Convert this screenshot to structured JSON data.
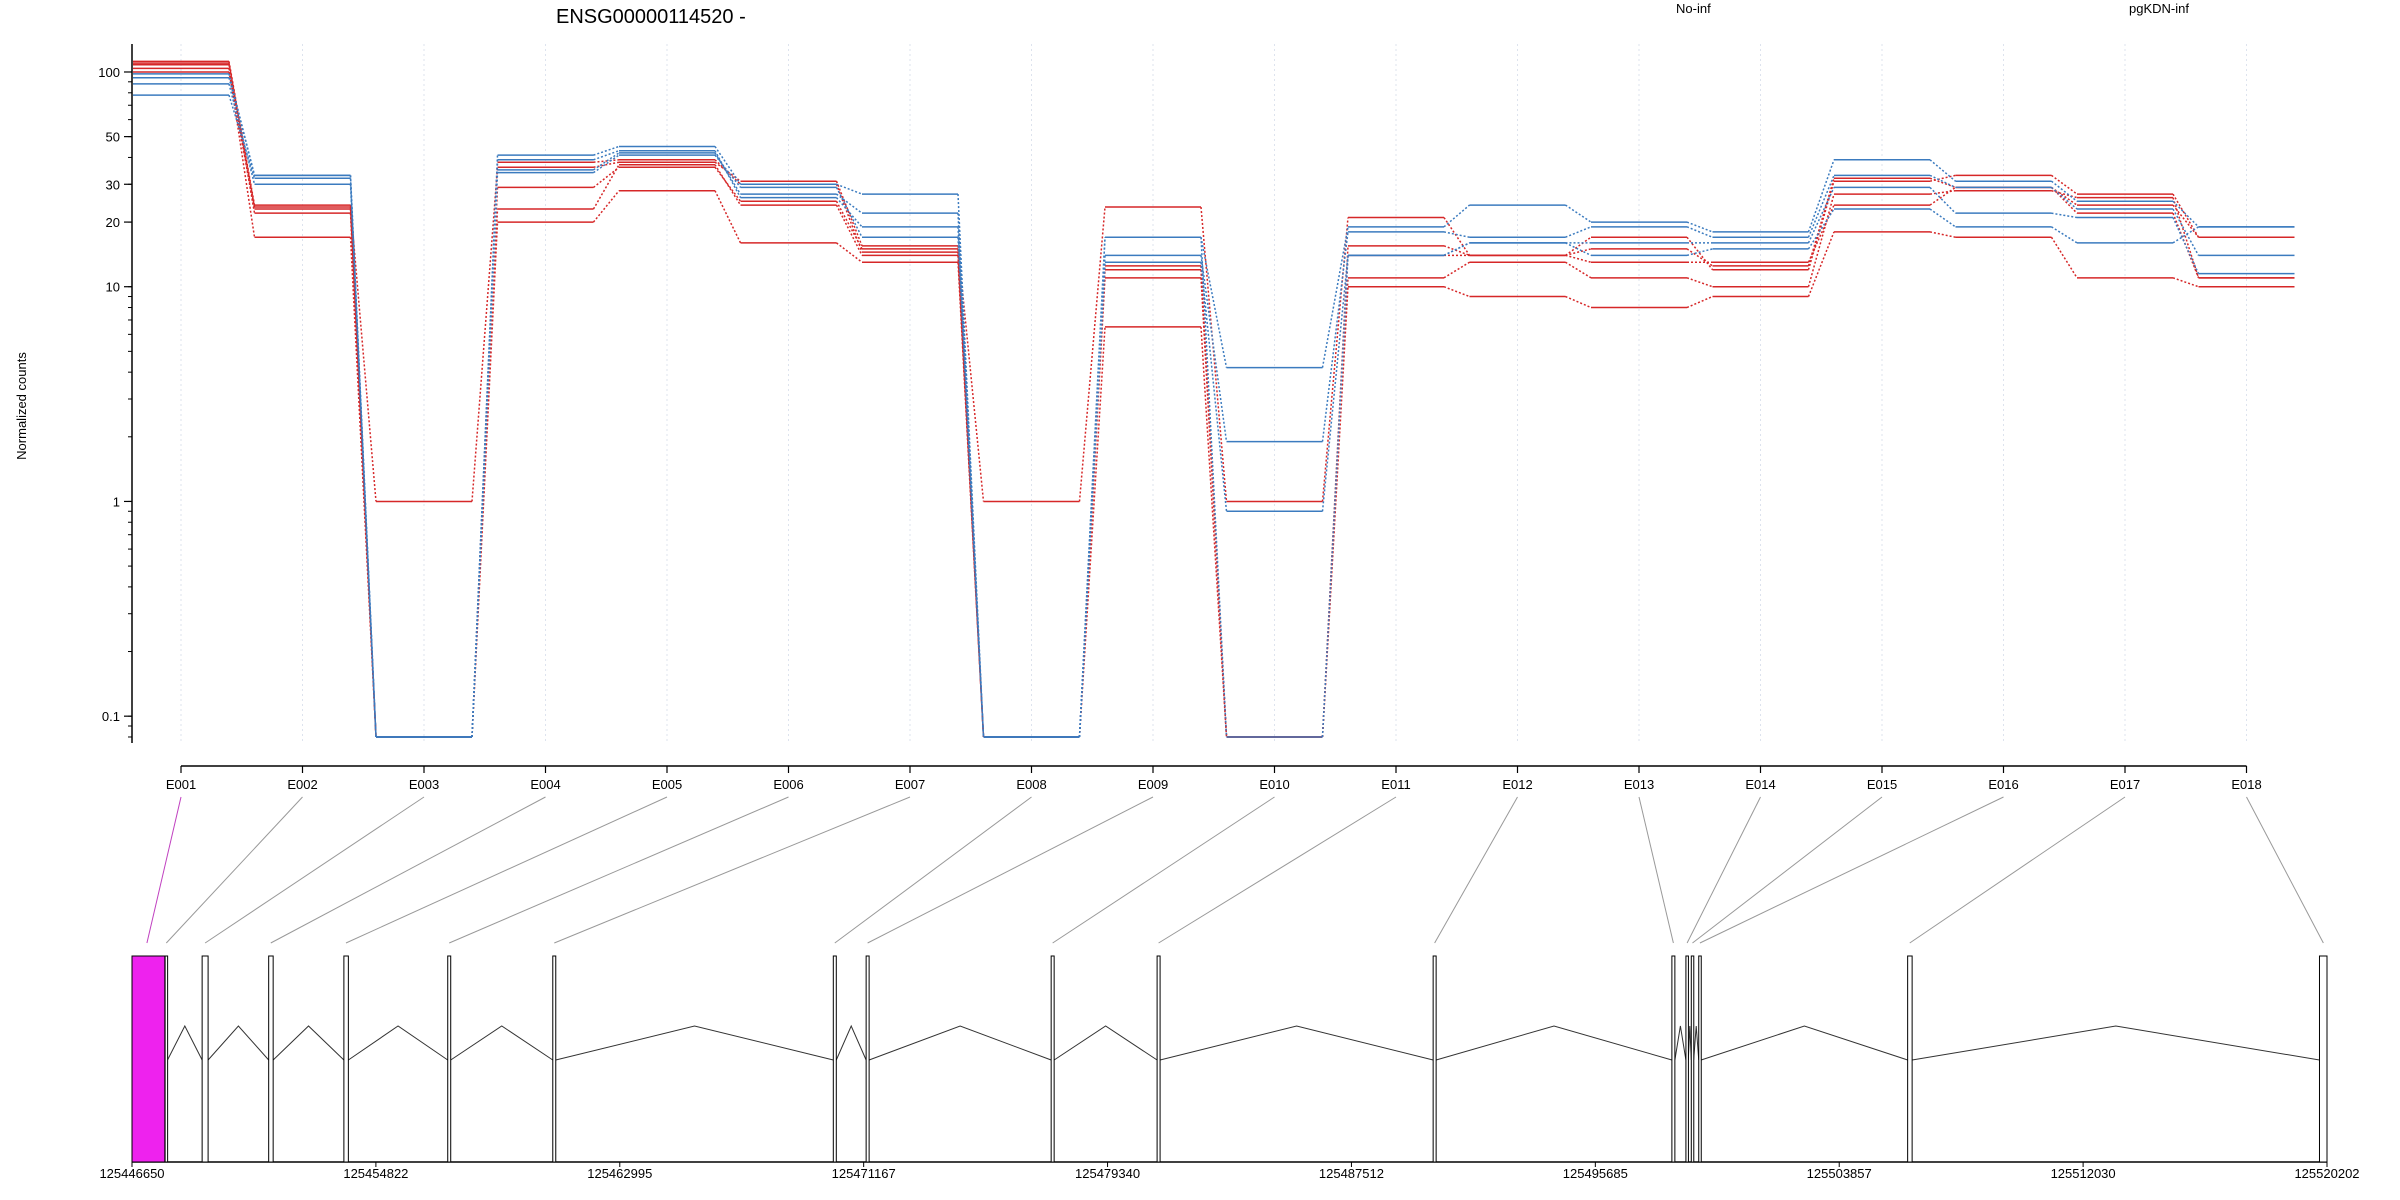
{
  "chart_data": {
    "type": "line",
    "title": "ENSG00000114520 -",
    "ylabel": "Normalized counts",
    "yscale": "log",
    "ylim": [
      0.075,
      135
    ],
    "yticks": [
      {
        "v": 0.1,
        "label": "0.1"
      },
      {
        "v": 1,
        "label": "1"
      },
      {
        "v": 10,
        "label": "10"
      },
      {
        "v": 20,
        "label": "20"
      },
      {
        "v": 30,
        "label": "30"
      },
      {
        "v": 50,
        "label": "50"
      },
      {
        "v": 100,
        "label": "100"
      }
    ],
    "categories": [
      "E001",
      "E002",
      "E003",
      "E004",
      "E005",
      "E006",
      "E007",
      "E008",
      "E009",
      "E010",
      "E011",
      "E012",
      "E013",
      "E014",
      "E015",
      "E016",
      "E017",
      "E018"
    ],
    "legend": [
      {
        "name": "No-inf",
        "color": "#d62728"
      },
      {
        "name": "pgKDN-inf",
        "color": "#3b7bbf"
      }
    ],
    "series": [
      {
        "group": "No-inf",
        "color": "#d62728",
        "values": [
          112,
          24,
          1.0,
          36,
          38,
          31,
          15.5,
          1.0,
          23.5,
          1.0,
          21,
          14,
          17,
          12,
          31,
          33,
          27,
          17
        ]
      },
      {
        "group": "No-inf",
        "color": "#d62728",
        "values": [
          108,
          22,
          0.08,
          29,
          36,
          25,
          15,
          0.08,
          12,
          0.08,
          15.5,
          14,
          13,
          13,
          24,
          29,
          22,
          11
        ]
      },
      {
        "group": "No-inf",
        "color": "#d62728",
        "values": [
          104,
          17,
          0.08,
          23,
          37,
          24,
          14,
          0.08,
          11,
          0.08,
          11,
          13,
          11,
          10,
          27,
          28,
          26,
          11
        ]
      },
      {
        "group": "No-inf",
        "color": "#d62728",
        "values": [
          100,
          23,
          0.08,
          20,
          28,
          16,
          13,
          0.08,
          6.5,
          0.08,
          10,
          9,
          8,
          9,
          18,
          17,
          11,
          10
        ]
      },
      {
        "group": "No-inf",
        "color": "#d62728",
        "values": [
          110,
          23.5,
          0.08,
          38,
          39,
          30,
          14.5,
          0.08,
          12.5,
          0.08,
          14,
          14,
          15,
          12.5,
          32,
          29,
          24,
          17
        ]
      },
      {
        "group": "pgKDN-inf",
        "color": "#3b7bbf",
        "values": [
          98,
          33,
          0.08,
          41,
          45,
          30,
          27,
          0.08,
          17,
          4.2,
          19,
          24,
          20,
          18,
          39,
          31,
          25,
          19
        ]
      },
      {
        "group": "pgKDN-inf",
        "color": "#3b7bbf",
        "values": [
          94,
          33,
          0.08,
          35,
          42,
          27,
          22,
          0.08,
          14,
          1.9,
          18,
          17,
          19,
          17,
          33,
          29,
          23,
          14
        ]
      },
      {
        "group": "pgKDN-inf",
        "color": "#3b7bbf",
        "values": [
          88,
          30,
          0.08,
          39,
          43,
          26,
          19,
          0.08,
          13,
          0.9,
          14,
          16,
          16,
          16,
          29,
          22,
          21,
          11.5
        ]
      },
      {
        "group": "pgKDN-inf",
        "color": "#3b7bbf",
        "values": [
          78,
          32,
          0.08,
          34,
          41,
          29,
          17,
          0.08,
          17,
          0.08,
          14,
          16,
          14,
          15,
          23,
          19,
          16,
          19
        ]
      }
    ],
    "gene_model": {
      "coord_start": 125446650,
      "coord_end": 125520202,
      "coord_labels": [
        "125446650",
        "125454822",
        "125462995",
        "125471167",
        "125479340",
        "125487512",
        "125495685",
        "125503857",
        "125512030",
        "125520202"
      ],
      "highlight_color": "#ee22ee",
      "highlighted_exon": "E001",
      "exon_segments": [
        [
          125446650,
          125447750
        ],
        [
          125447760,
          125447840
        ],
        [
          125449000,
          125449200
        ],
        [
          125451230,
          125451380
        ],
        [
          125453750,
          125453900
        ],
        [
          125457230,
          125457330
        ],
        [
          125460750,
          125460850
        ],
        [
          125470150,
          125470250
        ],
        [
          125471250,
          125471350
        ],
        [
          125477450,
          125477550
        ],
        [
          125481000,
          125481100
        ],
        [
          125490250,
          125490350
        ],
        [
          125498250,
          125498350
        ],
        [
          125498720,
          125498800
        ],
        [
          125498900,
          125498980
        ],
        [
          125499150,
          125499230
        ],
        [
          125506150,
          125506300
        ],
        [
          125519950,
          125520202
        ]
      ],
      "exon_anchors": [
        125447150,
        125447800,
        125449100,
        125451300,
        125453820,
        125457280,
        125460800,
        125470200,
        125471300,
        125477500,
        125481050,
        125490300,
        125498300,
        125498760,
        125498940,
        125499190,
        125506220,
        125520080
      ]
    }
  }
}
